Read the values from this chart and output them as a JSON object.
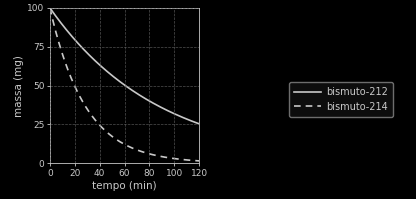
{
  "background_color": "#000000",
  "axes_bg_color": "#000000",
  "text_color": "#c8c8c8",
  "grid_color": "#666666",
  "spine_color": "#c8c8c8",
  "line_color": "#c8c8c8",
  "xlabel": "tempo (min)",
  "ylabel": "massa (mg)",
  "xlim": [
    0,
    120
  ],
  "ylim": [
    0,
    100
  ],
  "xticks": [
    0,
    20,
    40,
    60,
    80,
    100,
    120
  ],
  "yticks": [
    0,
    25,
    50,
    75,
    100
  ],
  "legend_labels": [
    "bismuto-212",
    "bismuto-214"
  ],
  "half_life_212": 60.55,
  "half_life_214": 19.7,
  "initial_mass": 100,
  "tick_fontsize": 6.5,
  "label_fontsize": 7.5,
  "legend_fontsize": 7
}
